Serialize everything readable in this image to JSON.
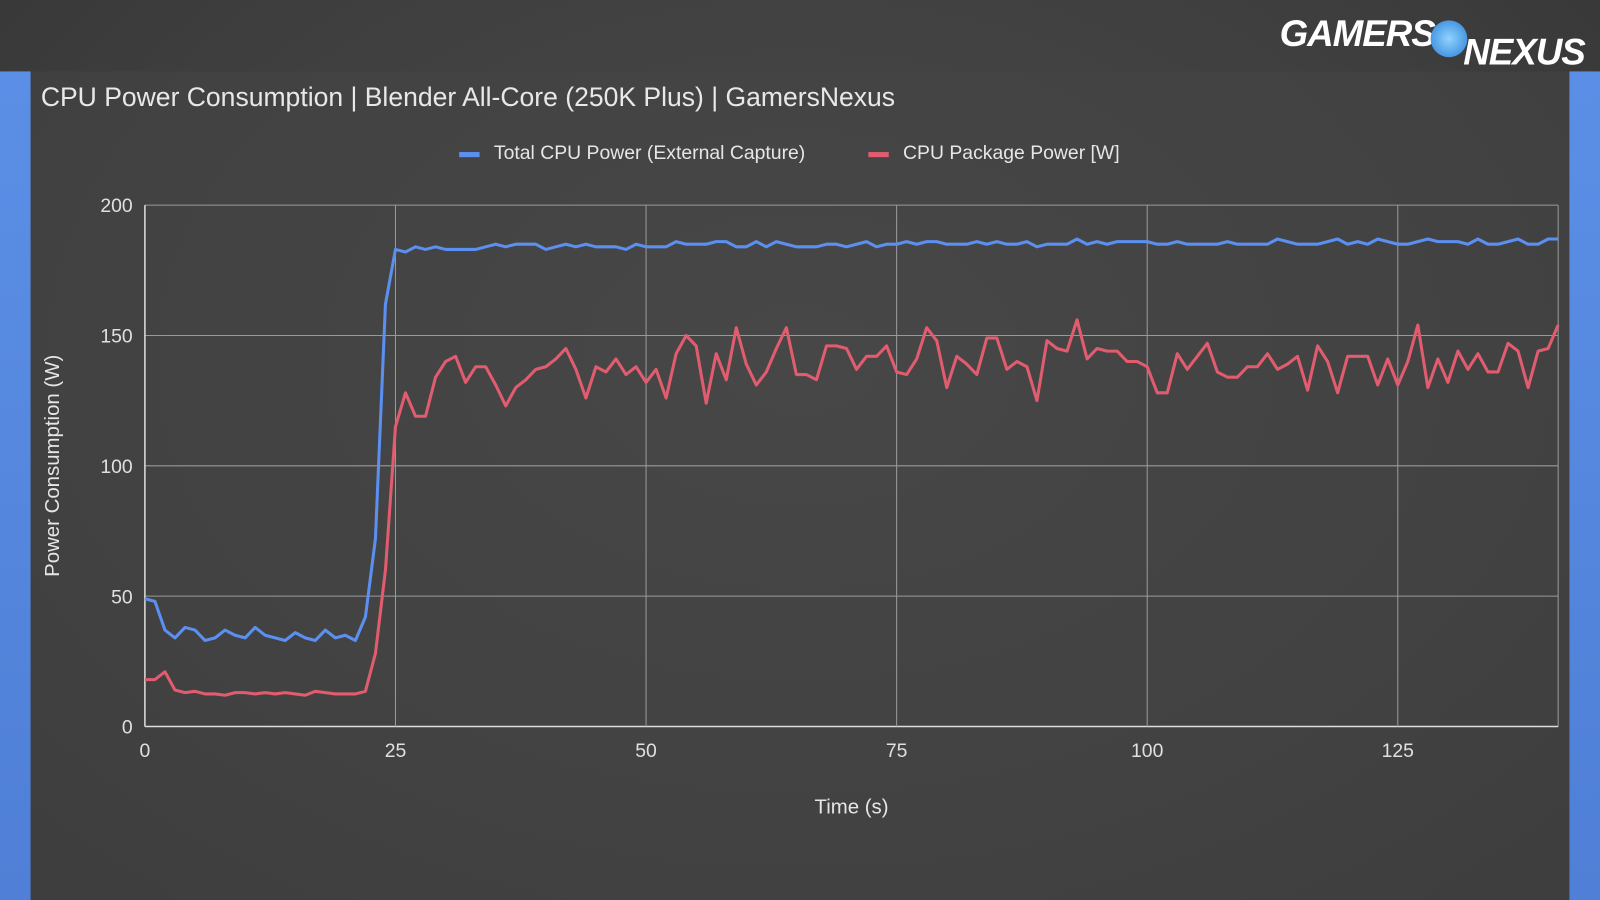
{
  "logo": {
    "text1": "GAMERS",
    "text2": "NEXUS"
  },
  "chart_data": {
    "type": "line",
    "title": "CPU Power Consumption | Blender All-Core (250K Plus) | GamersNexus",
    "xlabel": "Time (s)",
    "ylabel": "Power Consumption (W)",
    "xlim": [
      0,
      141
    ],
    "ylim": [
      0,
      200
    ],
    "xticks": [
      0,
      25,
      50,
      75,
      100,
      125
    ],
    "yticks": [
      0,
      50,
      100,
      150,
      200
    ],
    "grid": true,
    "legend_position": "top",
    "series": [
      {
        "name": "Total CPU Power (External Capture)",
        "color": "#5b8ff0",
        "values": [
          49,
          48,
          37,
          34,
          38,
          37,
          33,
          34,
          37,
          35,
          34,
          38,
          35,
          34,
          33,
          36,
          34,
          33,
          37,
          34,
          35,
          33,
          42,
          72,
          162,
          183,
          182,
          184,
          183,
          184,
          183,
          183,
          183,
          183,
          184,
          185,
          184,
          185,
          185,
          185,
          183,
          184,
          185,
          184,
          185,
          184,
          184,
          184,
          183,
          185,
          184,
          184,
          184,
          186,
          185,
          185,
          185,
          186,
          186,
          184,
          184,
          186,
          184,
          186,
          185,
          184,
          184,
          184,
          185,
          185,
          184,
          185,
          186,
          184,
          185,
          185,
          186,
          185,
          186,
          186,
          185,
          185,
          185,
          186,
          185,
          186,
          185,
          185,
          186,
          184,
          185,
          185,
          185,
          187,
          185,
          186,
          185,
          186,
          186,
          186,
          186,
          185,
          185,
          186,
          185,
          185,
          185,
          185,
          186,
          185,
          185,
          185,
          185,
          187,
          186,
          185,
          185,
          185,
          186,
          187,
          185,
          186,
          185,
          187,
          186,
          185,
          185,
          186,
          187,
          186,
          186,
          186,
          185,
          187,
          185,
          185,
          186,
          187,
          185,
          185,
          187,
          187
        ]
      },
      {
        "name": "CPU Package Power [W]",
        "color": "#e05c6e",
        "values": [
          18,
          18,
          21,
          14,
          13,
          13.5,
          12.5,
          12.5,
          12,
          13,
          13,
          12.5,
          13,
          12.5,
          13,
          12.5,
          12,
          13.5,
          13,
          12.5,
          12.5,
          12.5,
          13.5,
          28,
          60,
          115,
          128,
          119,
          119,
          134,
          140,
          142,
          132,
          138,
          138,
          131,
          123,
          130,
          133,
          137,
          138,
          141,
          145,
          137,
          126,
          138,
          136,
          141,
          135,
          138,
          132,
          137,
          126,
          143,
          150,
          146,
          124,
          143,
          133,
          153,
          139,
          131,
          136,
          145,
          153,
          135,
          135,
          133,
          146,
          146,
          145,
          137,
          142,
          142,
          146,
          136,
          135,
          141,
          153,
          148,
          130,
          142,
          139,
          135,
          149,
          149,
          137,
          140,
          138,
          125,
          148,
          145,
          144,
          156,
          141,
          145,
          144,
          144,
          140,
          140,
          138,
          128,
          128,
          143,
          137,
          142,
          147,
          136,
          134,
          134,
          138,
          138,
          143,
          137,
          139,
          142,
          129,
          146,
          140,
          128,
          142,
          142,
          142,
          131,
          141,
          131,
          140,
          154,
          130,
          141,
          132,
          144,
          137,
          143,
          136,
          136,
          147,
          144,
          130,
          144,
          145,
          154
        ]
      }
    ]
  }
}
